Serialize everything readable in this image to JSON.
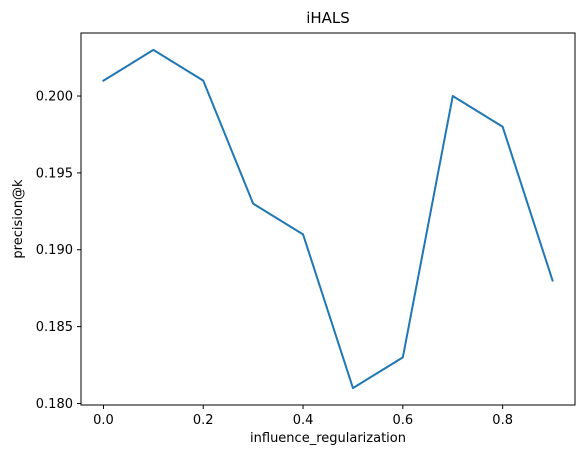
{
  "chart_data": {
    "type": "line",
    "title": "iHALS",
    "xlabel": "influence_regularization",
    "ylabel": "precision@k",
    "xlim": [
      -0.045,
      0.945
    ],
    "ylim": [
      0.1799,
      0.2041
    ],
    "xticks": [
      0.0,
      0.2,
      0.4,
      0.6,
      0.8
    ],
    "xtick_labels": [
      "0.0",
      "0.2",
      "0.4",
      "0.6",
      "0.8"
    ],
    "yticks": [
      0.18,
      0.185,
      0.19,
      0.195,
      0.2
    ],
    "ytick_labels": [
      "0.180",
      "0.185",
      "0.190",
      "0.195",
      "0.200"
    ],
    "grid": false,
    "series": [
      {
        "color": "#1f77b4",
        "x": [
          0.0,
          0.1,
          0.2,
          0.3,
          0.4,
          0.5,
          0.6,
          0.7,
          0.8,
          0.9
        ],
        "y": [
          0.201,
          0.203,
          0.201,
          0.193,
          0.191,
          0.181,
          0.183,
          0.2,
          0.198,
          0.188
        ]
      }
    ]
  }
}
